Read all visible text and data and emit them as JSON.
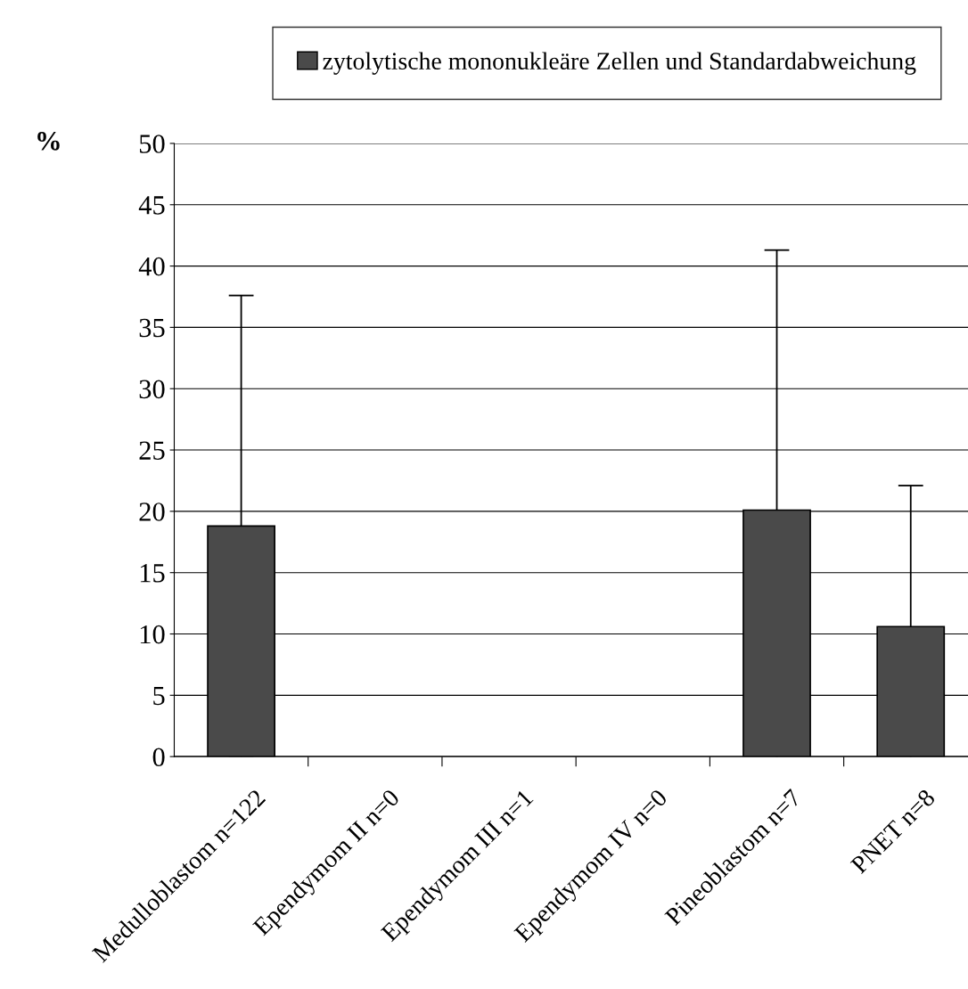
{
  "chart_data": {
    "type": "bar",
    "categories": [
      "Medulloblastom n=122",
      "Ependymom II n=0",
      "Ependymom III n=1",
      "Ependymom IV n=0",
      "Pineoblastom n=7",
      "PNET n=8"
    ],
    "series": [
      {
        "name": "zytolytische mononukleäre Zellen und Standardabweichung",
        "color": "#4a4a4a",
        "values": [
          18.8,
          null,
          null,
          null,
          20.1,
          10.6
        ],
        "errors": [
          18.8,
          null,
          null,
          null,
          21.2,
          11.5
        ]
      }
    ],
    "ylabel": "%",
    "ylim": [
      0,
      50
    ],
    "yticks": [
      0,
      5,
      10,
      15,
      20,
      25,
      30,
      35,
      40,
      45,
      50
    ],
    "grid": "y",
    "legend": "top"
  }
}
